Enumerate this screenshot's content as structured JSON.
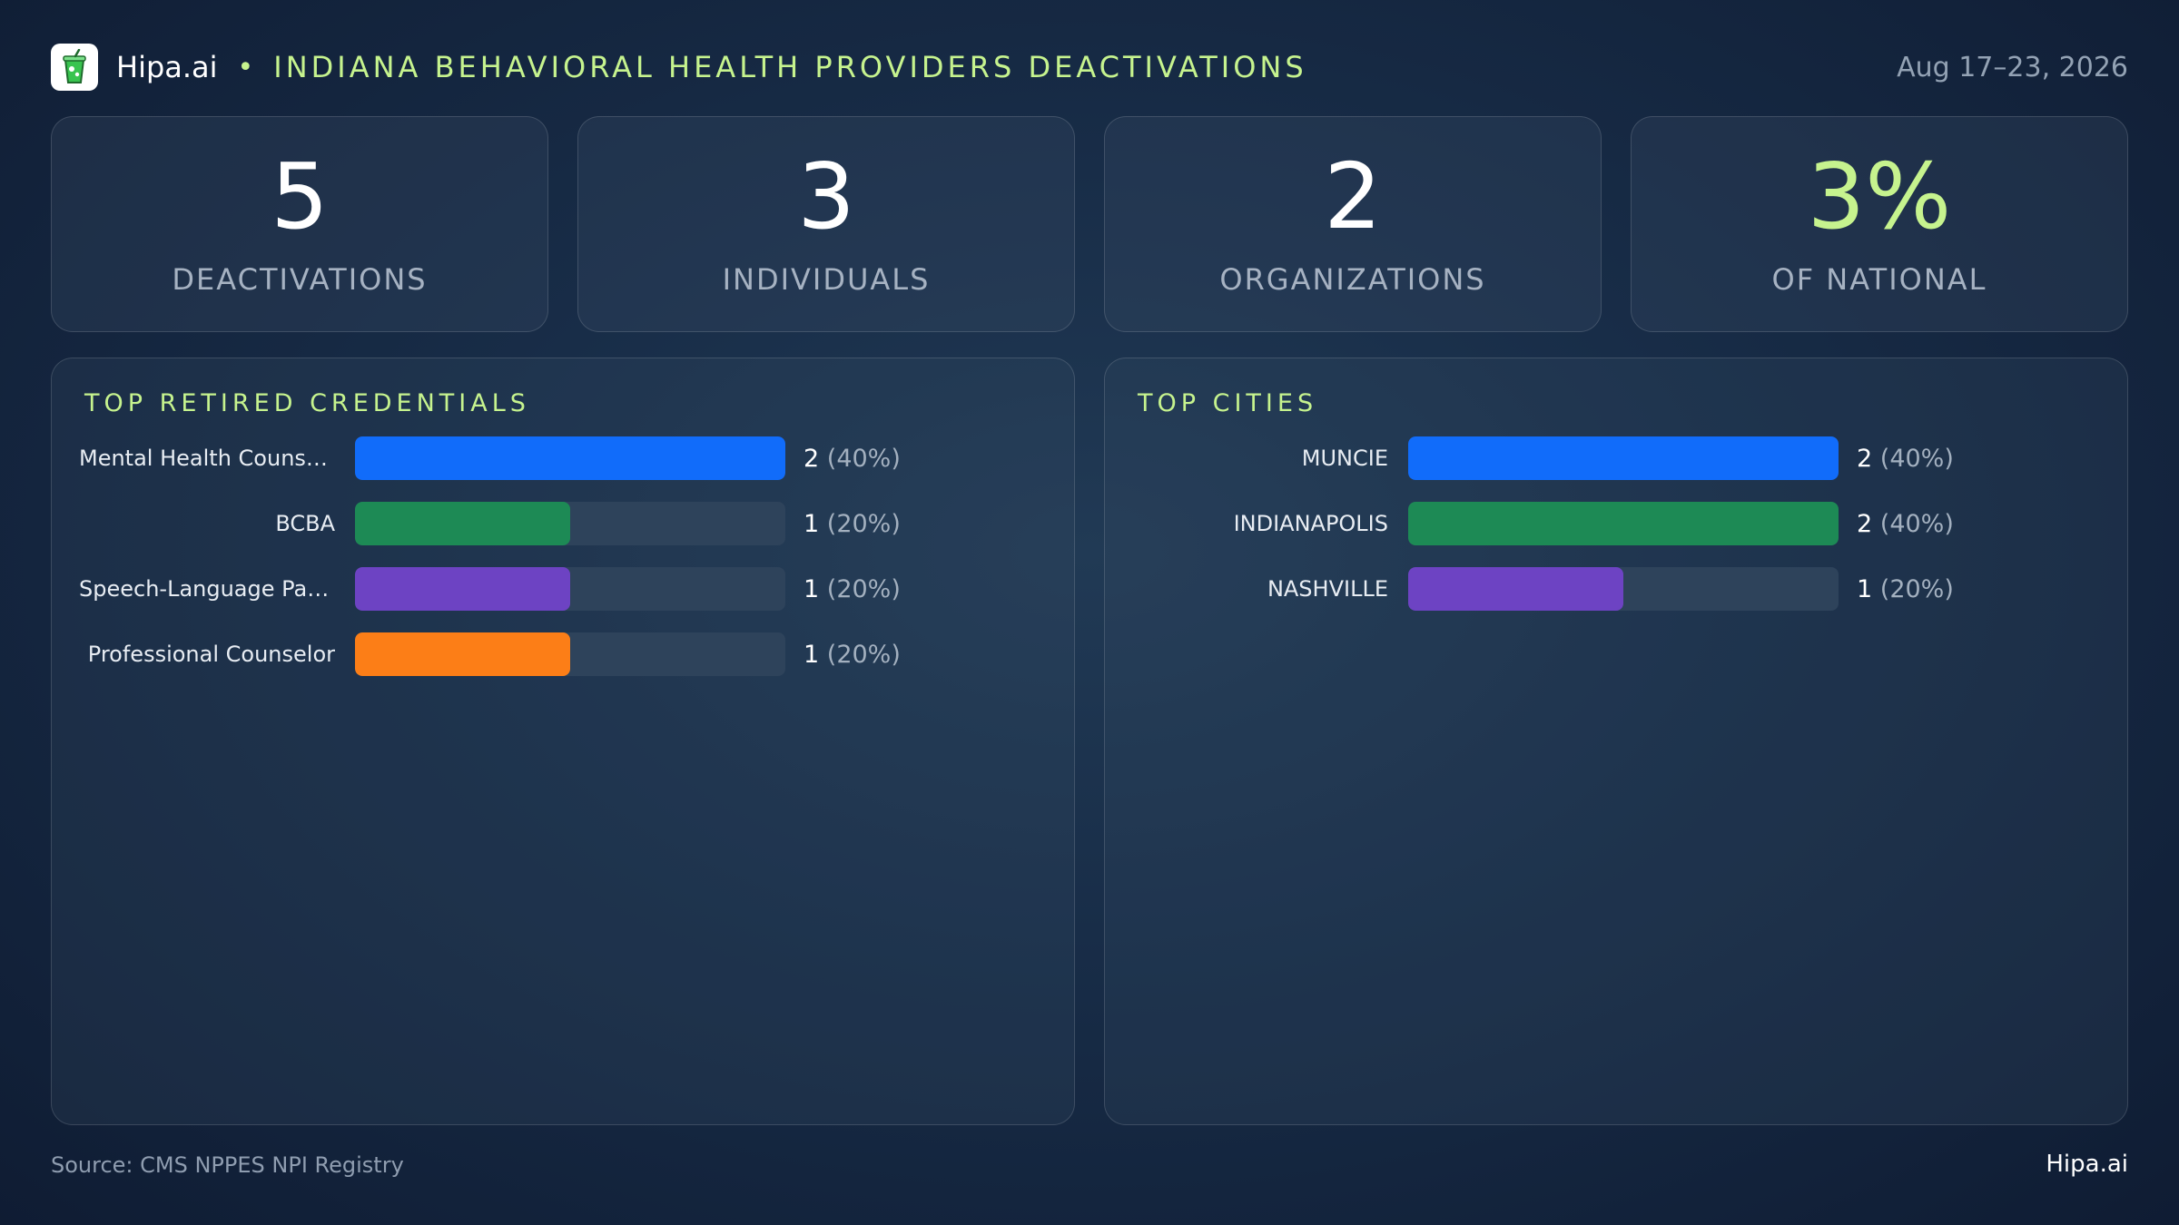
{
  "header": {
    "brand": "Hipa.ai",
    "separator": "•",
    "title": "INDIANA BEHAVIORAL HEALTH PROVIDERS DEACTIVATIONS",
    "date": "Aug 17–23, 2026",
    "logo_icon": "drink-cup-icon"
  },
  "kpis": [
    {
      "value": "5",
      "label": "DEACTIVATIONS",
      "accent": false
    },
    {
      "value": "3",
      "label": "INDIVIDUALS",
      "accent": false
    },
    {
      "value": "2",
      "label": "ORGANIZATIONS",
      "accent": false
    },
    {
      "value": "3%",
      "label": "OF NATIONAL",
      "accent": true
    }
  ],
  "colors": {
    "accent": "#c6f38e",
    "blue": "#116cfa",
    "green": "#1d8a55",
    "purple": "#6d43c3",
    "orange": "#fc7e17",
    "track": "#2e435b"
  },
  "chart_data": [
    {
      "type": "bar",
      "orientation": "horizontal",
      "title": "TOP RETIRED CREDENTIALS",
      "categories": [
        "Mental Health Counselor",
        "BCBA",
        "Speech-Language Pathol…",
        "Professional Counselor"
      ],
      "values": [
        2,
        1,
        1,
        1
      ],
      "value_labels": [
        "2",
        "1",
        "1",
        "1"
      ],
      "percent_labels": [
        "(40%)",
        "(20%)",
        "(20%)",
        "(20%)"
      ],
      "bar_colors": [
        "#116cfa",
        "#1d8a55",
        "#6d43c3",
        "#fc7e17"
      ],
      "xlim": [
        0,
        2
      ]
    },
    {
      "type": "bar",
      "orientation": "horizontal",
      "title": "TOP CITIES",
      "categories": [
        "MUNCIE",
        "INDIANAPOLIS",
        "NASHVILLE"
      ],
      "values": [
        2,
        2,
        1
      ],
      "value_labels": [
        "2",
        "2",
        "1"
      ],
      "percent_labels": [
        "(40%)",
        "(40%)",
        "(20%)"
      ],
      "bar_colors": [
        "#116cfa",
        "#1d8a55",
        "#6d43c3"
      ],
      "xlim": [
        0,
        2
      ]
    }
  ],
  "footer": {
    "source": "Source: CMS NPPES NPI Registry",
    "brand": "Hipa.ai"
  }
}
